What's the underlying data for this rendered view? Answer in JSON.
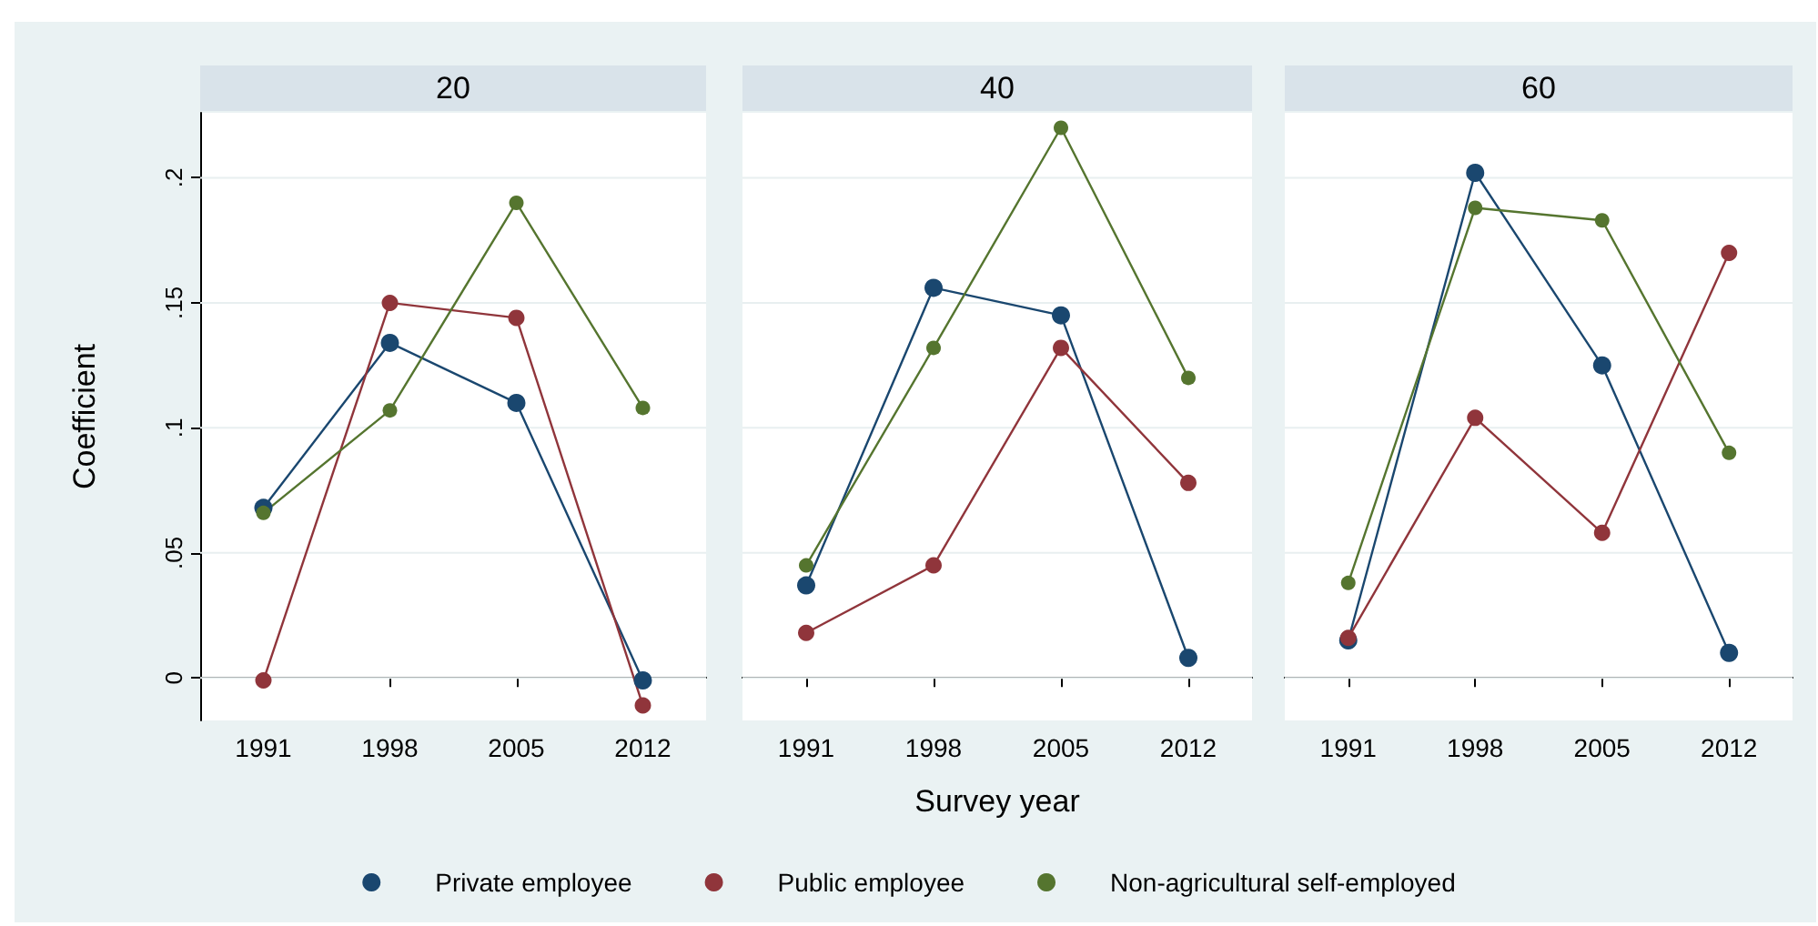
{
  "chart_data": [
    {
      "type": "line",
      "title": "20",
      "ylabel": "Coefficient",
      "categories": [
        "1991",
        "1998",
        "2005",
        "2012"
      ],
      "ylim": [
        -0.017,
        0.226
      ],
      "yticks": [
        0,
        {
          "value": 0.05,
          "label": ".05"
        },
        {
          "value": 0.1,
          "label": ".1"
        },
        {
          "value": 0.15,
          "label": ".15"
        },
        {
          "value": 0.2,
          "label": ".2"
        }
      ],
      "grid": "y",
      "marker": "circle",
      "legend": false,
      "series": [
        {
          "color": "#1a476f",
          "values": [
            0.068,
            0.134,
            0.11,
            -0.001
          ]
        },
        {
          "color": "#90353b",
          "values": [
            -0.001,
            0.15,
            0.144,
            -0.011
          ]
        },
        {
          "color": "#55752f",
          "values": [
            0.066,
            0.107,
            0.19,
            0.108
          ]
        }
      ]
    },
    {
      "type": "line",
      "title": "40",
      "xlabel": "Survey year",
      "categories": [
        "1991",
        "1998",
        "2005",
        "2012"
      ],
      "ylim": [
        -0.017,
        0.226
      ],
      "yticks": [
        0,
        0.05,
        0.1,
        0.15,
        0.2
      ],
      "tick_labels": "x",
      "grid": "y",
      "marker": "circle",
      "legend": "bottom",
      "series": [
        {
          "name": "Private employee",
          "color": "#1a476f",
          "values": [
            0.037,
            0.156,
            0.145,
            0.008
          ]
        },
        {
          "name": "Public employee",
          "color": "#90353b",
          "values": [
            0.018,
            0.045,
            0.132,
            0.078
          ]
        },
        {
          "name": "Non-agricultural self-employed",
          "color": "#55752f",
          "values": [
            0.045,
            0.132,
            0.22,
            0.12
          ]
        }
      ]
    },
    {
      "type": "line",
      "title": "60",
      "categories": [
        "1991",
        "1998",
        "2005",
        "2012"
      ],
      "ylim": [
        -0.017,
        0.226
      ],
      "yticks": [
        0,
        0.05,
        0.1,
        0.15,
        0.2
      ],
      "tick_labels": "x",
      "grid": "y",
      "marker": "circle",
      "legend": false,
      "series": [
        {
          "color": "#1a476f",
          "values": [
            0.015,
            0.202,
            0.125,
            0.01
          ]
        },
        {
          "color": "#90353b",
          "values": [
            0.016,
            0.104,
            0.058,
            0.17
          ]
        },
        {
          "color": "#55752f",
          "values": [
            0.038,
            0.188,
            0.183,
            0.09
          ]
        }
      ]
    }
  ]
}
